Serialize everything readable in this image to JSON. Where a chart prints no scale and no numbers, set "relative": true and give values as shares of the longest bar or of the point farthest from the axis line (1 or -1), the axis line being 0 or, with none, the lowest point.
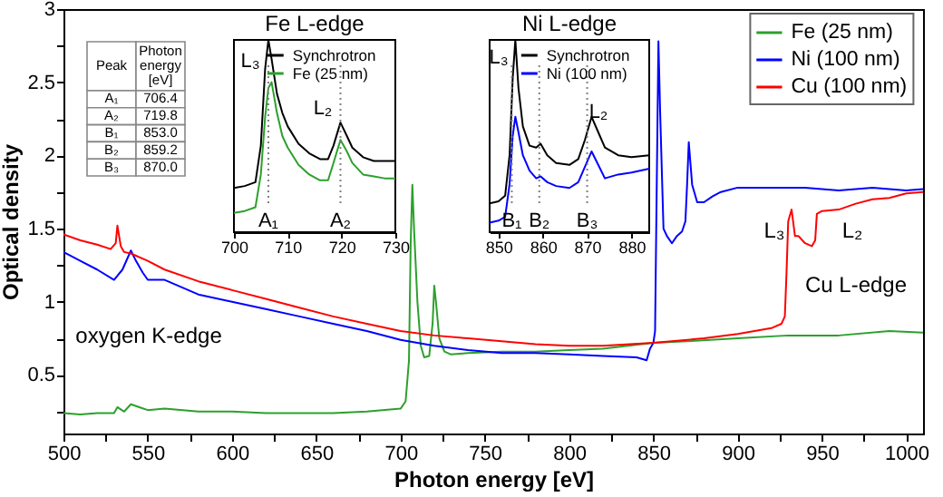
{
  "chart_data": [
    {
      "type": "line",
      "xlabel": "Photon energy [eV]",
      "ylabel": "Optical density",
      "xlim": [
        500,
        1010
      ],
      "ylim": [
        0.1,
        3
      ],
      "xticks": [
        500,
        {
          "value": 525,
          "label": null
        },
        550,
        {
          "value": 575,
          "label": null
        },
        600,
        {
          "value": 625,
          "label": null
        },
        650,
        {
          "value": 675,
          "label": null
        },
        700,
        {
          "value": 725,
          "label": null
        },
        750,
        {
          "value": 775,
          "label": null
        },
        800,
        {
          "value": 825,
          "label": null
        },
        850,
        {
          "value": 875,
          "label": null
        },
        900,
        {
          "value": 925,
          "label": null
        },
        950,
        {
          "value": 975,
          "label": null
        },
        1000
      ],
      "yticks": [
        {
          "value": 0.25,
          "label": null
        },
        0.5,
        {
          "value": 0.75,
          "label": null
        },
        1,
        {
          "value": 1.25,
          "label": null
        },
        1.5,
        {
          "value": 1.75,
          "label": null
        },
        2,
        {
          "value": 2.25,
          "label": null
        },
        2.5,
        {
          "value": 2.75,
          "label": null
        },
        3
      ],
      "legend": "top right",
      "annotations": [
        "oxygen K-edge",
        "Cu L-edge",
        "L₃",
        "L₂"
      ],
      "series": [
        {
          "name": "Fe (25 nm)",
          "color": "#2ca02c",
          "x": [
            500,
            510,
            520,
            530,
            532,
            536,
            540,
            545,
            550,
            560,
            580,
            600,
            620,
            640,
            660,
            680,
            700,
            703,
            705,
            706,
            707,
            708,
            710,
            712,
            714,
            717,
            719,
            720,
            721,
            723,
            726,
            730,
            740,
            760,
            780,
            800,
            820,
            850,
            870,
            900,
            930,
            960,
            990,
            1010
          ],
          "values": [
            0.24,
            0.23,
            0.24,
            0.24,
            0.28,
            0.25,
            0.3,
            0.28,
            0.26,
            0.27,
            0.25,
            0.25,
            0.24,
            0.24,
            0.24,
            0.25,
            0.27,
            0.32,
            0.6,
            1.4,
            1.8,
            1.5,
            1.0,
            0.7,
            0.62,
            0.63,
            0.85,
            1.11,
            1.0,
            0.75,
            0.66,
            0.64,
            0.65,
            0.66,
            0.66,
            0.67,
            0.68,
            0.72,
            0.73,
            0.75,
            0.77,
            0.77,
            0.8,
            0.79
          ]
        },
        {
          "name": "Ni (100 nm)",
          "color": "#0000ff",
          "x": [
            500,
            510,
            520,
            530,
            535,
            540,
            543,
            547,
            550,
            560,
            570,
            580,
            600,
            620,
            640,
            660,
            680,
            700,
            720,
            740,
            760,
            780,
            800,
            820,
            840,
            846,
            848,
            850,
            851,
            852,
            853,
            854,
            856,
            858,
            861,
            864,
            867,
            869,
            870,
            871,
            873,
            876,
            880,
            885,
            890,
            900,
            920,
            940,
            960,
            980,
            1000,
            1010
          ],
          "values": [
            1.34,
            1.28,
            1.22,
            1.15,
            1.22,
            1.35,
            1.28,
            1.2,
            1.15,
            1.15,
            1.1,
            1.05,
            1.0,
            0.95,
            0.9,
            0.85,
            0.8,
            0.74,
            0.7,
            0.67,
            0.65,
            0.65,
            0.64,
            0.63,
            0.62,
            0.6,
            0.68,
            0.72,
            0.8,
            1.8,
            2.78,
            2.3,
            1.5,
            1.45,
            1.4,
            1.45,
            1.48,
            1.55,
            1.8,
            2.09,
            1.8,
            1.68,
            1.68,
            1.72,
            1.75,
            1.78,
            1.78,
            1.78,
            1.76,
            1.78,
            1.76,
            1.77
          ]
        },
        {
          "name": "Cu (100 nm)",
          "color": "#ff0000",
          "x": [
            500,
            510,
            520,
            528,
            531,
            532,
            534,
            536,
            540,
            550,
            560,
            580,
            600,
            620,
            640,
            660,
            680,
            700,
            720,
            740,
            760,
            780,
            800,
            820,
            850,
            880,
            900,
            920,
            926,
            928,
            929,
            930,
            932,
            934,
            936,
            940,
            944,
            946,
            947,
            950,
            960,
            970,
            980,
            990,
            1000,
            1010
          ],
          "values": [
            1.46,
            1.42,
            1.39,
            1.36,
            1.4,
            1.52,
            1.38,
            1.34,
            1.33,
            1.28,
            1.22,
            1.14,
            1.08,
            1.02,
            0.96,
            0.9,
            0.85,
            0.8,
            0.77,
            0.75,
            0.73,
            0.71,
            0.7,
            0.7,
            0.72,
            0.75,
            0.78,
            0.82,
            0.85,
            0.9,
            1.2,
            1.55,
            1.63,
            1.45,
            1.45,
            1.4,
            1.38,
            1.42,
            1.6,
            1.62,
            1.63,
            1.67,
            1.7,
            1.71,
            1.74,
            1.75
          ]
        }
      ]
    },
    {
      "type": "other",
      "xlabel": "Peak",
      "ylabel": "Photon energy [eV]",
      "categories": [
        "A₁",
        "A₂",
        "B₁",
        "B₂",
        "B₃"
      ],
      "value_labels": [
        "706.4",
        "719.8",
        "853.0",
        "859.2",
        "870.0"
      ]
    },
    {
      "type": "line",
      "title": "Fe L-edge",
      "relative": true,
      "xlim": [
        700,
        730
      ],
      "xticks": [
        700,
        710,
        720,
        730
      ],
      "legend": "top right",
      "ref_lines": [
        {
          "axis": "x",
          "value": 706.4,
          "label": "A₁",
          "line_style": "dotted",
          "color": "#808080"
        },
        {
          "axis": "x",
          "value": 719.8,
          "label": "A₂",
          "line_style": "dotted",
          "color": "#808080"
        }
      ],
      "annotations": [
        "L₃",
        "L₂"
      ],
      "series": [
        {
          "name": "Synchrotron",
          "color": "#000000",
          "x": [
            700,
            702,
            704,
            705,
            705.8,
            706.4,
            707,
            708,
            709,
            710,
            712,
            714,
            716,
            717.5,
            718.5,
            719.8,
            721,
            722,
            724,
            726,
            728,
            730
          ],
          "values": [
            0.23,
            0.24,
            0.26,
            0.45,
            0.85,
            1.0,
            0.9,
            0.72,
            0.62,
            0.55,
            0.46,
            0.41,
            0.38,
            0.38,
            0.45,
            0.57,
            0.5,
            0.44,
            0.39,
            0.37,
            0.37,
            0.37
          ]
        },
        {
          "name": "Fe (25 nm)",
          "color": "#2ca02c",
          "x": [
            700,
            702,
            704,
            705,
            705.8,
            706.4,
            707,
            708,
            709,
            710,
            712,
            714,
            716,
            717.5,
            718.5,
            719.8,
            721,
            722,
            724,
            726,
            728,
            730
          ],
          "values": [
            0.1,
            0.11,
            0.13,
            0.3,
            0.6,
            0.75,
            0.78,
            0.62,
            0.5,
            0.44,
            0.35,
            0.3,
            0.27,
            0.27,
            0.36,
            0.48,
            0.42,
            0.36,
            0.3,
            0.29,
            0.28,
            0.28
          ]
        }
      ]
    },
    {
      "type": "line",
      "title": "Ni L-edge",
      "relative": true,
      "xlim": [
        848,
        884
      ],
      "xticks": [
        850,
        860,
        870,
        880
      ],
      "legend": "top right",
      "ref_lines": [
        {
          "axis": "x",
          "value": 853.0,
          "label": "B₁",
          "line_style": "dotted",
          "color": "#808080"
        },
        {
          "axis": "x",
          "value": 859.2,
          "label": "B₂",
          "line_style": "dotted",
          "color": "#808080"
        },
        {
          "axis": "x",
          "value": 870.0,
          "label": "B₃",
          "line_style": "dotted",
          "color": "#808080"
        }
      ],
      "annotations": [
        "L₃",
        "L₂"
      ],
      "series": [
        {
          "name": "Synchrotron",
          "color": "#000000",
          "x": [
            848,
            850,
            851.5,
            852.5,
            853.2,
            853.8,
            854.5,
            855.5,
            857,
            858.5,
            859.5,
            861,
            863,
            866,
            868,
            869.5,
            871,
            872.5,
            874,
            877,
            880,
            884
          ],
          "values": [
            0.15,
            0.16,
            0.19,
            0.4,
            0.8,
            1.0,
            0.75,
            0.55,
            0.45,
            0.44,
            0.46,
            0.4,
            0.36,
            0.35,
            0.38,
            0.48,
            0.6,
            0.52,
            0.44,
            0.4,
            0.39,
            0.4
          ]
        },
        {
          "name": "Ni (100 nm)",
          "color": "#0000ff",
          "x": [
            848,
            850,
            851.5,
            852.5,
            853.2,
            853.8,
            854.5,
            855.5,
            857,
            858.5,
            859.5,
            861,
            863,
            866,
            868,
            869.5,
            871,
            872.5,
            874,
            877,
            880,
            884
          ],
          "values": [
            0.05,
            0.06,
            0.08,
            0.25,
            0.5,
            0.6,
            0.52,
            0.4,
            0.32,
            0.28,
            0.29,
            0.26,
            0.24,
            0.23,
            0.26,
            0.34,
            0.42,
            0.35,
            0.28,
            0.3,
            0.31,
            0.33
          ]
        }
      ]
    }
  ]
}
